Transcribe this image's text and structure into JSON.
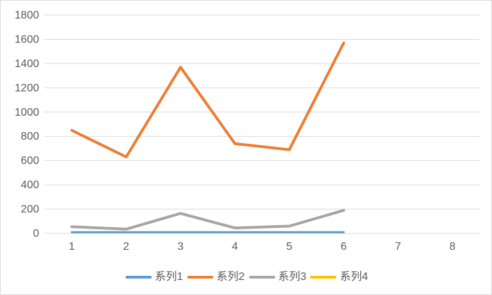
{
  "chart": {
    "background_color": "#FFFFFF",
    "border_color": "#D9D9D9",
    "grid_color": "#D9D9D9",
    "axis_text_color": "#595959",
    "legend_text_color": "#595959"
  },
  "chart_data": {
    "type": "line",
    "title": "",
    "xlabel": "",
    "ylabel": "",
    "categories": [
      "1",
      "2",
      "3",
      "4",
      "5",
      "6",
      "7",
      "8"
    ],
    "series": [
      {
        "name": "系列1",
        "color": "#5B9BD5",
        "stroke_width": 3,
        "values": [
          10,
          10,
          10,
          10,
          10,
          10
        ]
      },
      {
        "name": "系列2",
        "color": "#ED7D31",
        "stroke_width": 4,
        "values": [
          850,
          630,
          1370,
          740,
          690,
          1570
        ]
      },
      {
        "name": "系列3",
        "color": "#A5A5A5",
        "stroke_width": 4,
        "values": [
          55,
          35,
          165,
          45,
          60,
          190
        ]
      },
      {
        "name": "系列4",
        "color": "#FFC000",
        "stroke_width": 4,
        "values": []
      }
    ],
    "ylim": [
      0,
      1800
    ],
    "ytick_step": 200,
    "grid": true,
    "legend_position": "bottom"
  }
}
